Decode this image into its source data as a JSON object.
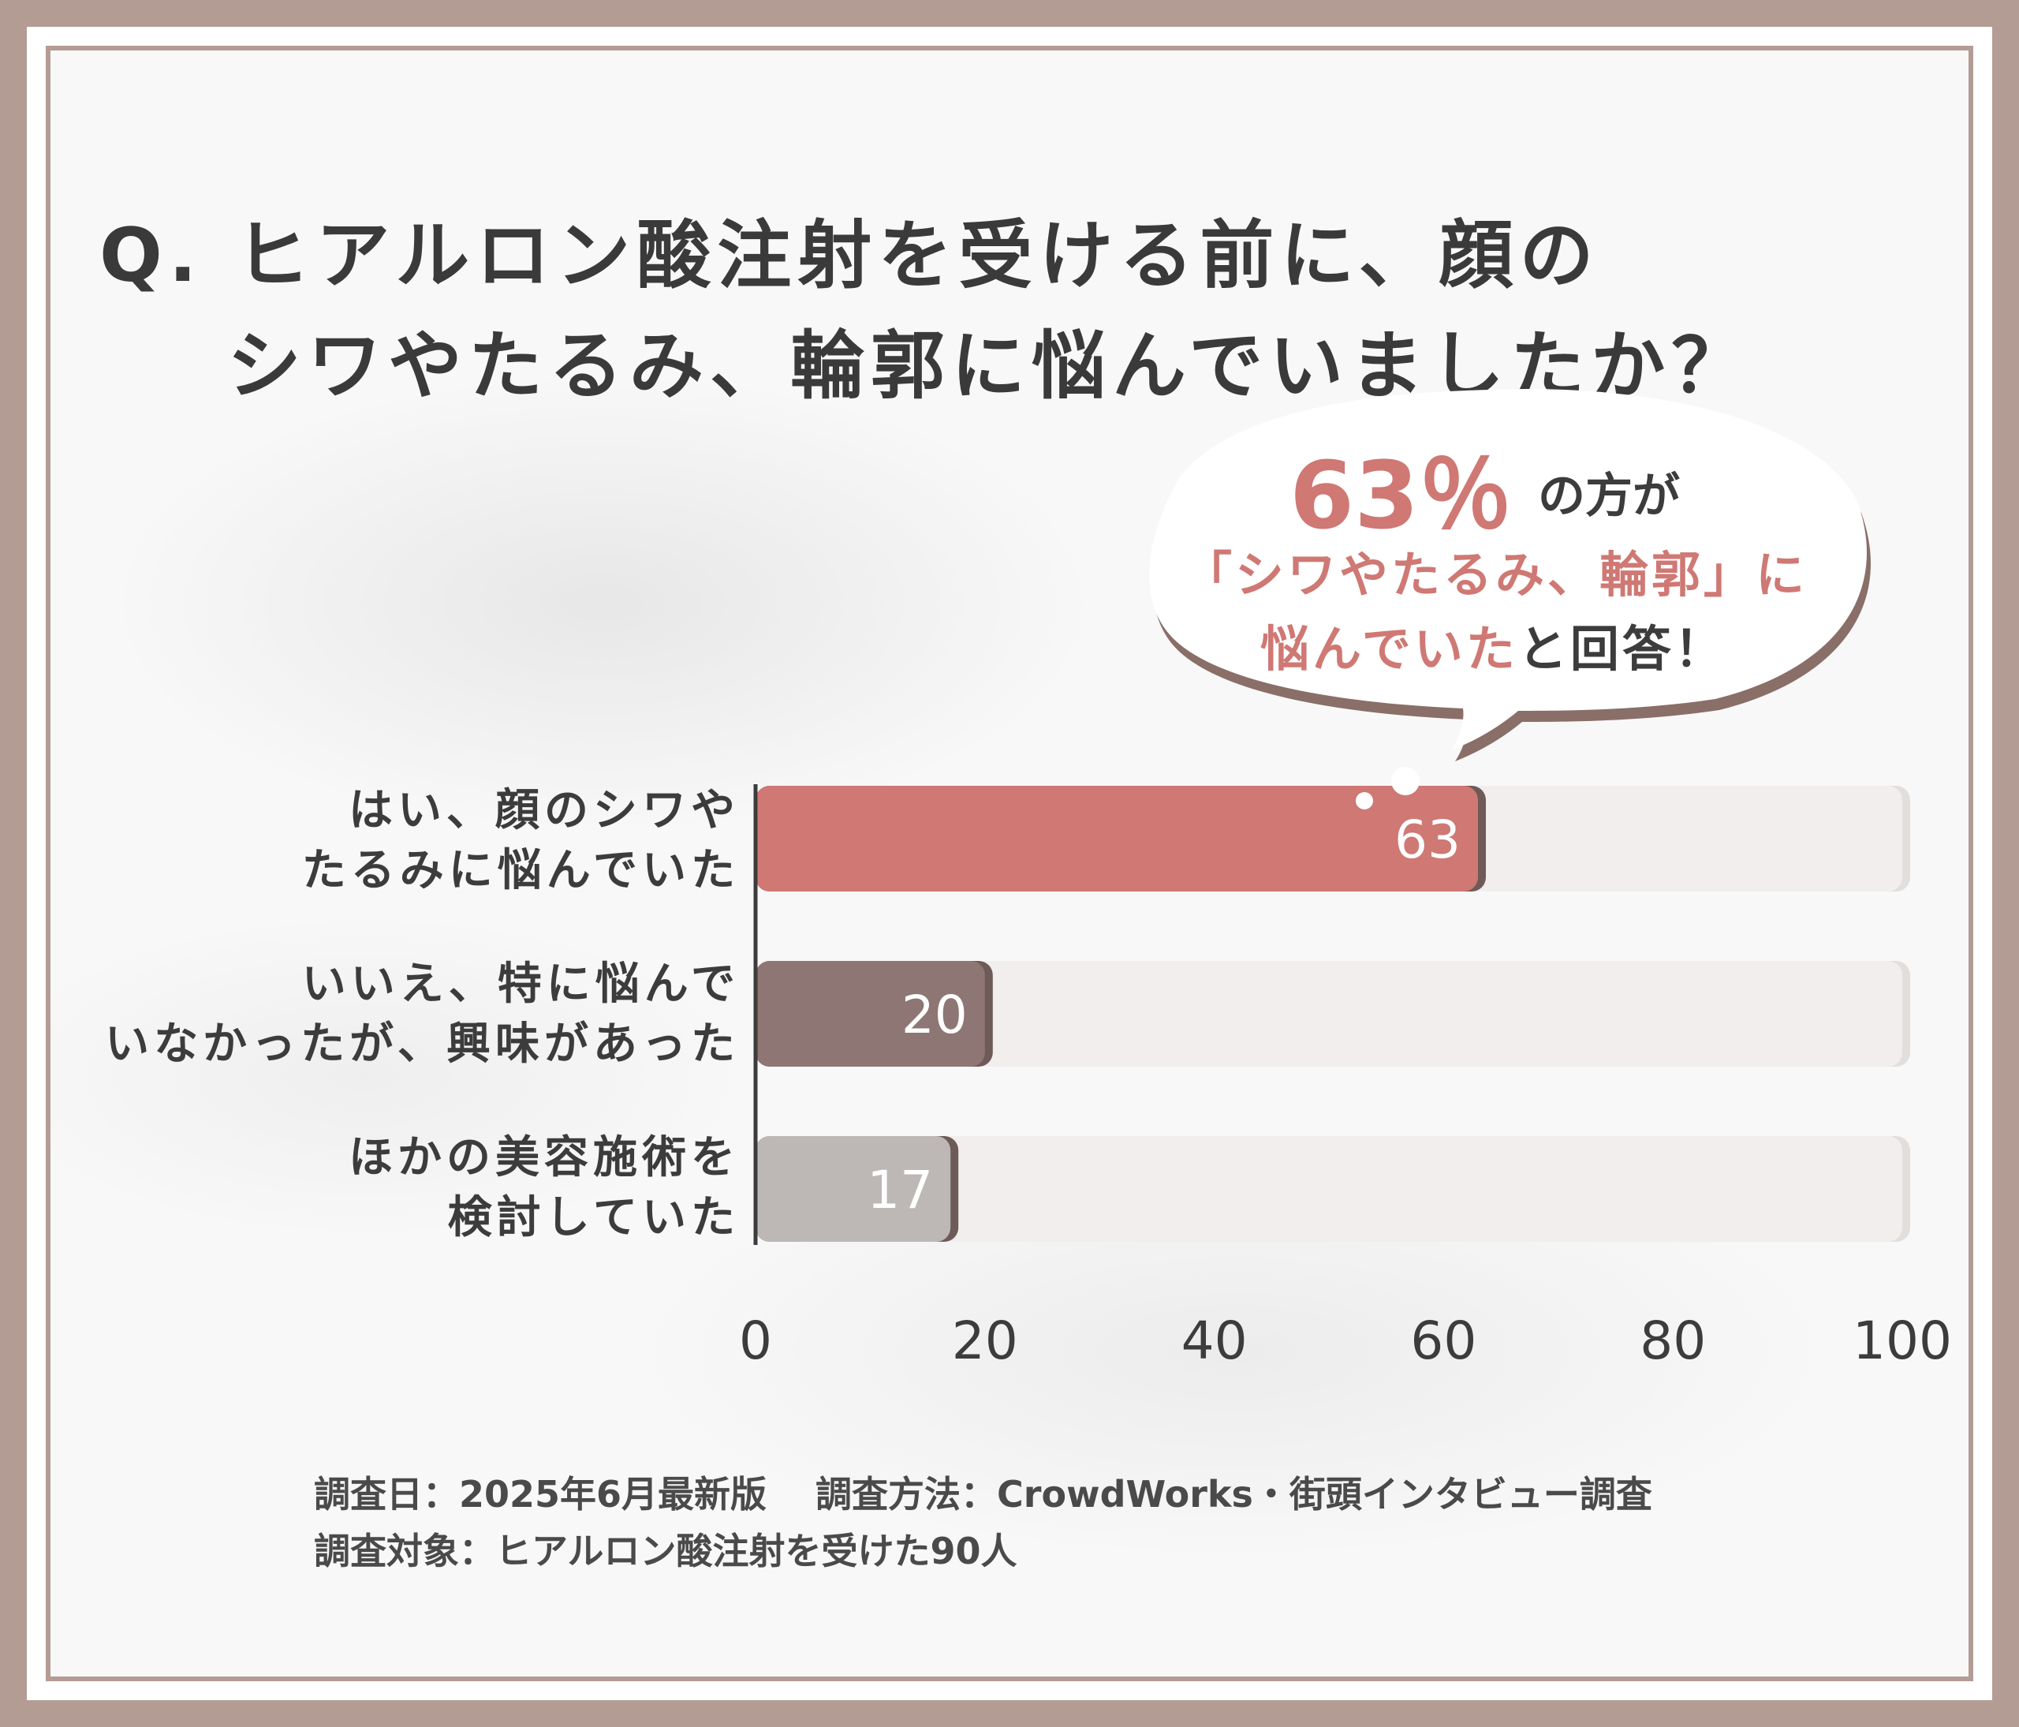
{
  "title": {
    "line1": "Q. ヒアルロン酸注射を受ける前に、顔の",
    "line2": "シワやたるみ、輪郭に悩んでいましたか？"
  },
  "callout": {
    "percent": "63％",
    "line1_suffix": "の方が",
    "line2": "「シワやたるみ、輪郭」に",
    "line3_highlight": "悩んでいた",
    "line3_suffix": "と回答！"
  },
  "chart_data": {
    "type": "bar",
    "orientation": "horizontal",
    "categories": [
      [
        "はい、顔のシワや",
        "たるみに悩んでいた"
      ],
      [
        "いいえ、特に悩んで",
        "いなかったが、興味があった"
      ],
      [
        "ほかの美容施術を",
        "検討していた"
      ]
    ],
    "values": [
      63,
      20,
      17
    ],
    "xlim": [
      0,
      100
    ],
    "xticks": [
      "0",
      "20",
      "40",
      "60",
      "80",
      "100"
    ],
    "bar_colors": [
      "#cf7874",
      "#8e7674",
      "#bdb8b6"
    ],
    "track_color": "#f1eeed",
    "grid": false
  },
  "footnotes": {
    "line1": "調査日：2025年6月最新版　 調査方法：CrowdWorks・街頭インタビュー調査",
    "line2": "調査対象：ヒアルロン酸注射を受けた90人"
  },
  "colors": {
    "frame": "#b39c94",
    "accent": "#cf7874",
    "text": "#3a3a3a"
  }
}
